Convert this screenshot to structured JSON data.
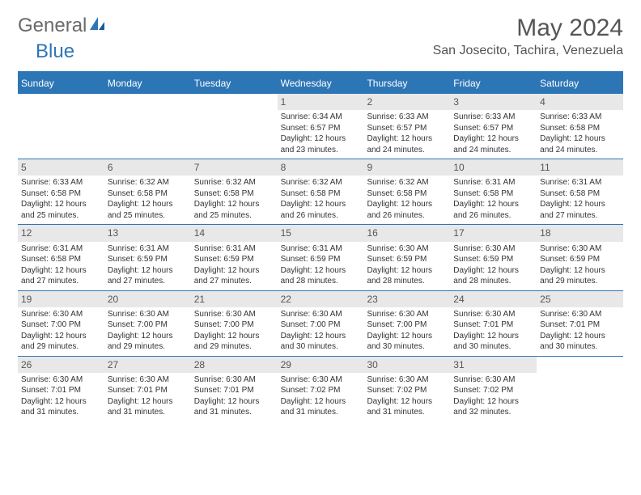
{
  "logo": {
    "general": "General",
    "blue": "Blue"
  },
  "title": "May 2024",
  "location": "San Josecito, Tachira, Venezuela",
  "weekdays": [
    "Sunday",
    "Monday",
    "Tuesday",
    "Wednesday",
    "Thursday",
    "Friday",
    "Saturday"
  ],
  "colors": {
    "accent": "#2d76b6",
    "header_text": "#ffffff",
    "daynum_bg": "#e8e8e8",
    "text": "#333333",
    "title_text": "#555555"
  },
  "weeks": [
    [
      {
        "n": "",
        "sr": "",
        "ss": "",
        "dl": ""
      },
      {
        "n": "",
        "sr": "",
        "ss": "",
        "dl": ""
      },
      {
        "n": "",
        "sr": "",
        "ss": "",
        "dl": ""
      },
      {
        "n": "1",
        "sr": "Sunrise: 6:34 AM",
        "ss": "Sunset: 6:57 PM",
        "dl": "Daylight: 12 hours and 23 minutes."
      },
      {
        "n": "2",
        "sr": "Sunrise: 6:33 AM",
        "ss": "Sunset: 6:57 PM",
        "dl": "Daylight: 12 hours and 24 minutes."
      },
      {
        "n": "3",
        "sr": "Sunrise: 6:33 AM",
        "ss": "Sunset: 6:57 PM",
        "dl": "Daylight: 12 hours and 24 minutes."
      },
      {
        "n": "4",
        "sr": "Sunrise: 6:33 AM",
        "ss": "Sunset: 6:58 PM",
        "dl": "Daylight: 12 hours and 24 minutes."
      }
    ],
    [
      {
        "n": "5",
        "sr": "Sunrise: 6:33 AM",
        "ss": "Sunset: 6:58 PM",
        "dl": "Daylight: 12 hours and 25 minutes."
      },
      {
        "n": "6",
        "sr": "Sunrise: 6:32 AM",
        "ss": "Sunset: 6:58 PM",
        "dl": "Daylight: 12 hours and 25 minutes."
      },
      {
        "n": "7",
        "sr": "Sunrise: 6:32 AM",
        "ss": "Sunset: 6:58 PM",
        "dl": "Daylight: 12 hours and 25 minutes."
      },
      {
        "n": "8",
        "sr": "Sunrise: 6:32 AM",
        "ss": "Sunset: 6:58 PM",
        "dl": "Daylight: 12 hours and 26 minutes."
      },
      {
        "n": "9",
        "sr": "Sunrise: 6:32 AM",
        "ss": "Sunset: 6:58 PM",
        "dl": "Daylight: 12 hours and 26 minutes."
      },
      {
        "n": "10",
        "sr": "Sunrise: 6:31 AM",
        "ss": "Sunset: 6:58 PM",
        "dl": "Daylight: 12 hours and 26 minutes."
      },
      {
        "n": "11",
        "sr": "Sunrise: 6:31 AM",
        "ss": "Sunset: 6:58 PM",
        "dl": "Daylight: 12 hours and 27 minutes."
      }
    ],
    [
      {
        "n": "12",
        "sr": "Sunrise: 6:31 AM",
        "ss": "Sunset: 6:58 PM",
        "dl": "Daylight: 12 hours and 27 minutes."
      },
      {
        "n": "13",
        "sr": "Sunrise: 6:31 AM",
        "ss": "Sunset: 6:59 PM",
        "dl": "Daylight: 12 hours and 27 minutes."
      },
      {
        "n": "14",
        "sr": "Sunrise: 6:31 AM",
        "ss": "Sunset: 6:59 PM",
        "dl": "Daylight: 12 hours and 27 minutes."
      },
      {
        "n": "15",
        "sr": "Sunrise: 6:31 AM",
        "ss": "Sunset: 6:59 PM",
        "dl": "Daylight: 12 hours and 28 minutes."
      },
      {
        "n": "16",
        "sr": "Sunrise: 6:30 AM",
        "ss": "Sunset: 6:59 PM",
        "dl": "Daylight: 12 hours and 28 minutes."
      },
      {
        "n": "17",
        "sr": "Sunrise: 6:30 AM",
        "ss": "Sunset: 6:59 PM",
        "dl": "Daylight: 12 hours and 28 minutes."
      },
      {
        "n": "18",
        "sr": "Sunrise: 6:30 AM",
        "ss": "Sunset: 6:59 PM",
        "dl": "Daylight: 12 hours and 29 minutes."
      }
    ],
    [
      {
        "n": "19",
        "sr": "Sunrise: 6:30 AM",
        "ss": "Sunset: 7:00 PM",
        "dl": "Daylight: 12 hours and 29 minutes."
      },
      {
        "n": "20",
        "sr": "Sunrise: 6:30 AM",
        "ss": "Sunset: 7:00 PM",
        "dl": "Daylight: 12 hours and 29 minutes."
      },
      {
        "n": "21",
        "sr": "Sunrise: 6:30 AM",
        "ss": "Sunset: 7:00 PM",
        "dl": "Daylight: 12 hours and 29 minutes."
      },
      {
        "n": "22",
        "sr": "Sunrise: 6:30 AM",
        "ss": "Sunset: 7:00 PM",
        "dl": "Daylight: 12 hours and 30 minutes."
      },
      {
        "n": "23",
        "sr": "Sunrise: 6:30 AM",
        "ss": "Sunset: 7:00 PM",
        "dl": "Daylight: 12 hours and 30 minutes."
      },
      {
        "n": "24",
        "sr": "Sunrise: 6:30 AM",
        "ss": "Sunset: 7:01 PM",
        "dl": "Daylight: 12 hours and 30 minutes."
      },
      {
        "n": "25",
        "sr": "Sunrise: 6:30 AM",
        "ss": "Sunset: 7:01 PM",
        "dl": "Daylight: 12 hours and 30 minutes."
      }
    ],
    [
      {
        "n": "26",
        "sr": "Sunrise: 6:30 AM",
        "ss": "Sunset: 7:01 PM",
        "dl": "Daylight: 12 hours and 31 minutes."
      },
      {
        "n": "27",
        "sr": "Sunrise: 6:30 AM",
        "ss": "Sunset: 7:01 PM",
        "dl": "Daylight: 12 hours and 31 minutes."
      },
      {
        "n": "28",
        "sr": "Sunrise: 6:30 AM",
        "ss": "Sunset: 7:01 PM",
        "dl": "Daylight: 12 hours and 31 minutes."
      },
      {
        "n": "29",
        "sr": "Sunrise: 6:30 AM",
        "ss": "Sunset: 7:02 PM",
        "dl": "Daylight: 12 hours and 31 minutes."
      },
      {
        "n": "30",
        "sr": "Sunrise: 6:30 AM",
        "ss": "Sunset: 7:02 PM",
        "dl": "Daylight: 12 hours and 31 minutes."
      },
      {
        "n": "31",
        "sr": "Sunrise: 6:30 AM",
        "ss": "Sunset: 7:02 PM",
        "dl": "Daylight: 12 hours and 32 minutes."
      },
      {
        "n": "",
        "sr": "",
        "ss": "",
        "dl": ""
      }
    ]
  ]
}
